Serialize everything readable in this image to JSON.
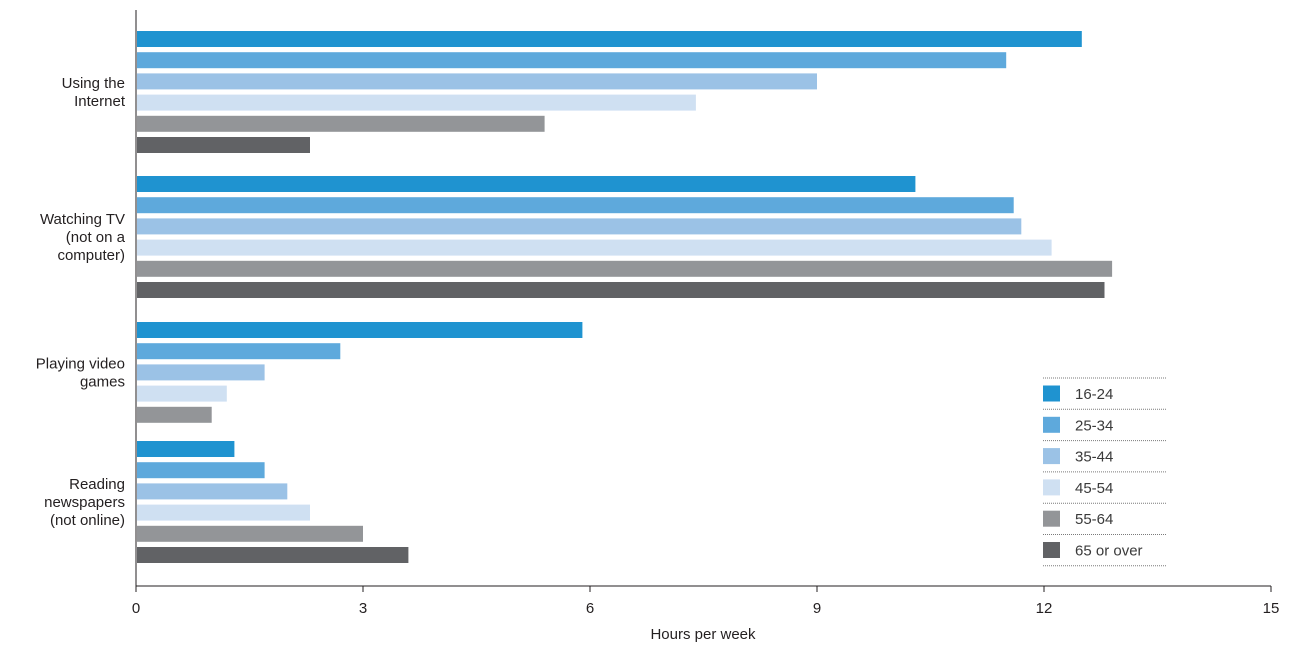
{
  "chart_data": {
    "type": "bar",
    "orientation": "horizontal",
    "categories": [
      [
        "Using the",
        "Internet"
      ],
      [
        "Watching TV",
        "(not on a",
        "computer)"
      ],
      [
        "Playing video",
        "games"
      ],
      [
        "Reading",
        "newspapers",
        "(not online)"
      ]
    ],
    "series": [
      {
        "name": "16-24",
        "color": "#1f93d0",
        "values": [
          12.5,
          10.3,
          5.9,
          1.3
        ]
      },
      {
        "name": "25-34",
        "color": "#5ea9dc",
        "values": [
          11.5,
          11.6,
          2.7,
          1.7
        ]
      },
      {
        "name": "35-44",
        "color": "#9bc2e6",
        "values": [
          9.0,
          11.7,
          1.7,
          2.0
        ]
      },
      {
        "name": "45-54",
        "color": "#cfe0f2",
        "values": [
          7.4,
          12.1,
          1.2,
          2.3
        ]
      },
      {
        "name": "55-64",
        "color": "#939598",
        "values": [
          5.4,
          12.9,
          1.0,
          3.0
        ]
      },
      {
        "name": "65 or over",
        "color": "#616265",
        "values": [
          2.3,
          12.8,
          null,
          3.6
        ]
      }
    ],
    "xlabel": "Hours per week",
    "ylabel": "",
    "xlim": [
      0,
      15
    ],
    "xticks": [
      0,
      3,
      6,
      9,
      12,
      15
    ],
    "grid": false,
    "legend_position": "bottom-right"
  }
}
